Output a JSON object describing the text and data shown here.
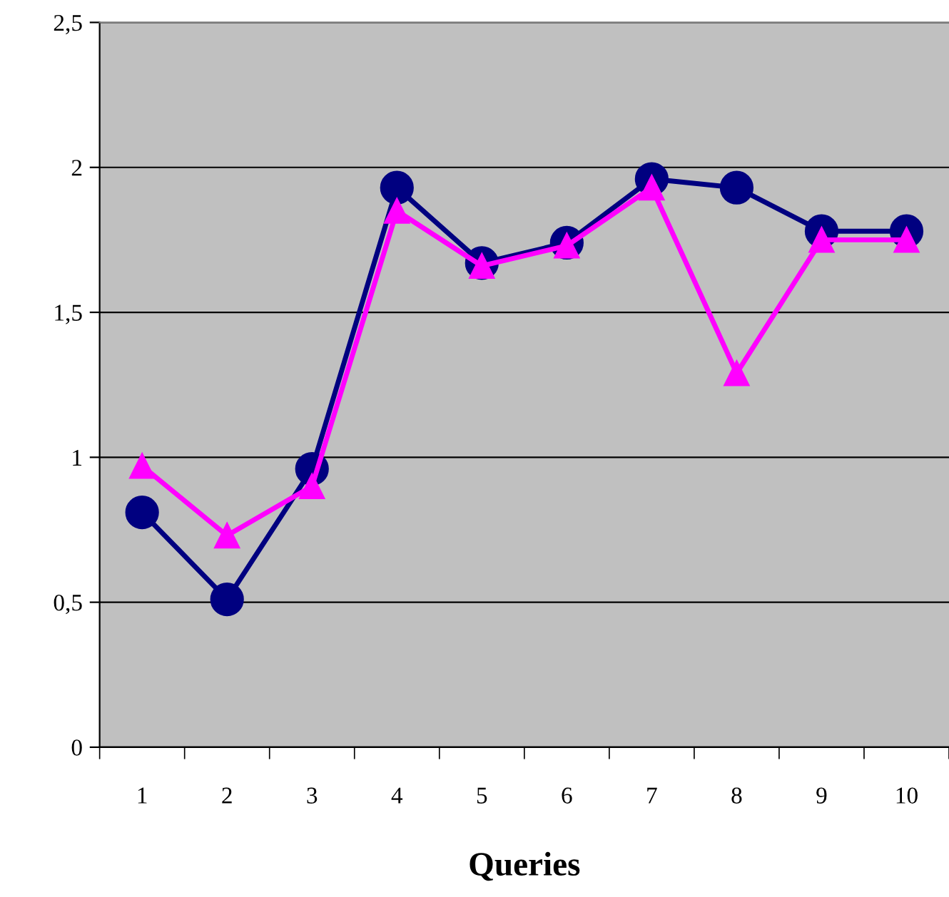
{
  "chart_data": {
    "type": "line",
    "xlabel": "Queries",
    "categories": [
      "1",
      "2",
      "3",
      "4",
      "5",
      "6",
      "7",
      "8",
      "9",
      "10"
    ],
    "series": [
      {
        "color": "#000080",
        "marker": "circle",
        "values": [
          0.81,
          0.51,
          0.96,
          1.93,
          1.67,
          1.74,
          1.96,
          1.93,
          1.78,
          1.78
        ]
      },
      {
        "color": "#ff00ff",
        "marker": "triangle",
        "values": [
          0.97,
          0.73,
          0.9,
          1.85,
          1.66,
          1.73,
          1.93,
          1.29,
          1.75,
          1.75
        ]
      }
    ],
    "ylim": [
      0,
      2.5
    ],
    "yticks": [
      0,
      {
        "value": 0.5,
        "label": "0,5"
      },
      1,
      {
        "value": 1.5,
        "label": "1,5"
      },
      2,
      {
        "value": 2.5,
        "label": "2,5"
      }
    ],
    "grid": "y",
    "legend": false,
    "line_style": "solid"
  }
}
